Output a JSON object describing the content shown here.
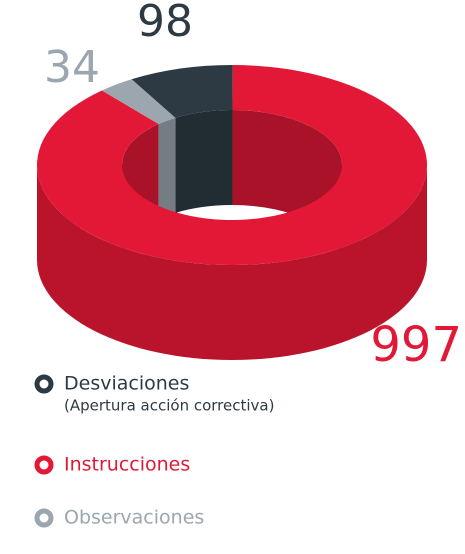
{
  "chart_data": {
    "type": "pie",
    "categories": [
      "Desviaciones",
      "Instrucciones",
      "Observaciones"
    ],
    "annotations": [
      "(Apertura acción correctiva)"
    ],
    "values": [
      98,
      997,
      34
    ],
    "colors": [
      "#2d3a44",
      "#e31837",
      "#9ba6ae"
    ]
  }
}
